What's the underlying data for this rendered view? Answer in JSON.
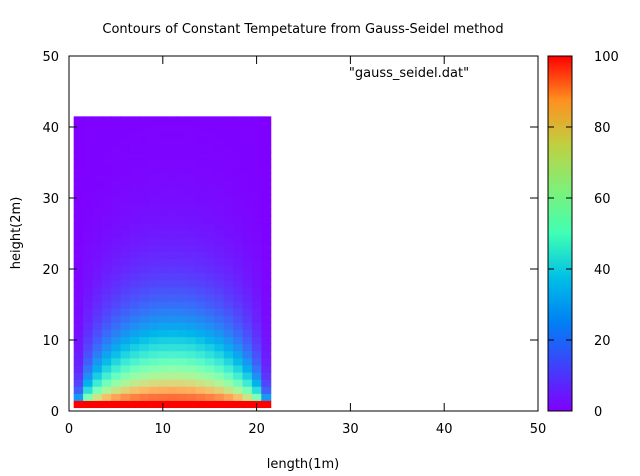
{
  "chart_data": {
    "type": "heatmap",
    "title": "Contours of Constant Tempetature from Gauss-Seidel method",
    "xlabel": "length(1m)",
    "ylabel": "height(2m)",
    "legend_entry": "\"gauss_seidel.dat\"",
    "legend_placement": "top-right",
    "xlim": [
      0,
      50
    ],
    "ylim": [
      0,
      50
    ],
    "x_ticks": [
      "0",
      "10",
      "20",
      "30",
      "40",
      "50"
    ],
    "y_ticks": [
      "0",
      "10",
      "20",
      "30",
      "40",
      "50"
    ],
    "colorbar": {
      "range": [
        0,
        100
      ],
      "ticks": [
        "0",
        "20",
        "40",
        "60",
        "80",
        "100"
      ],
      "palette": "rainbow"
    },
    "grid": false,
    "field": {
      "x_range": [
        0.5,
        21.5
      ],
      "y_range": [
        0.5,
        41.5
      ],
      "cell_size": 1,
      "hot_boundary_value": 100,
      "hot_boundary": "bottom",
      "other_boundaries_value": 0
    }
  }
}
